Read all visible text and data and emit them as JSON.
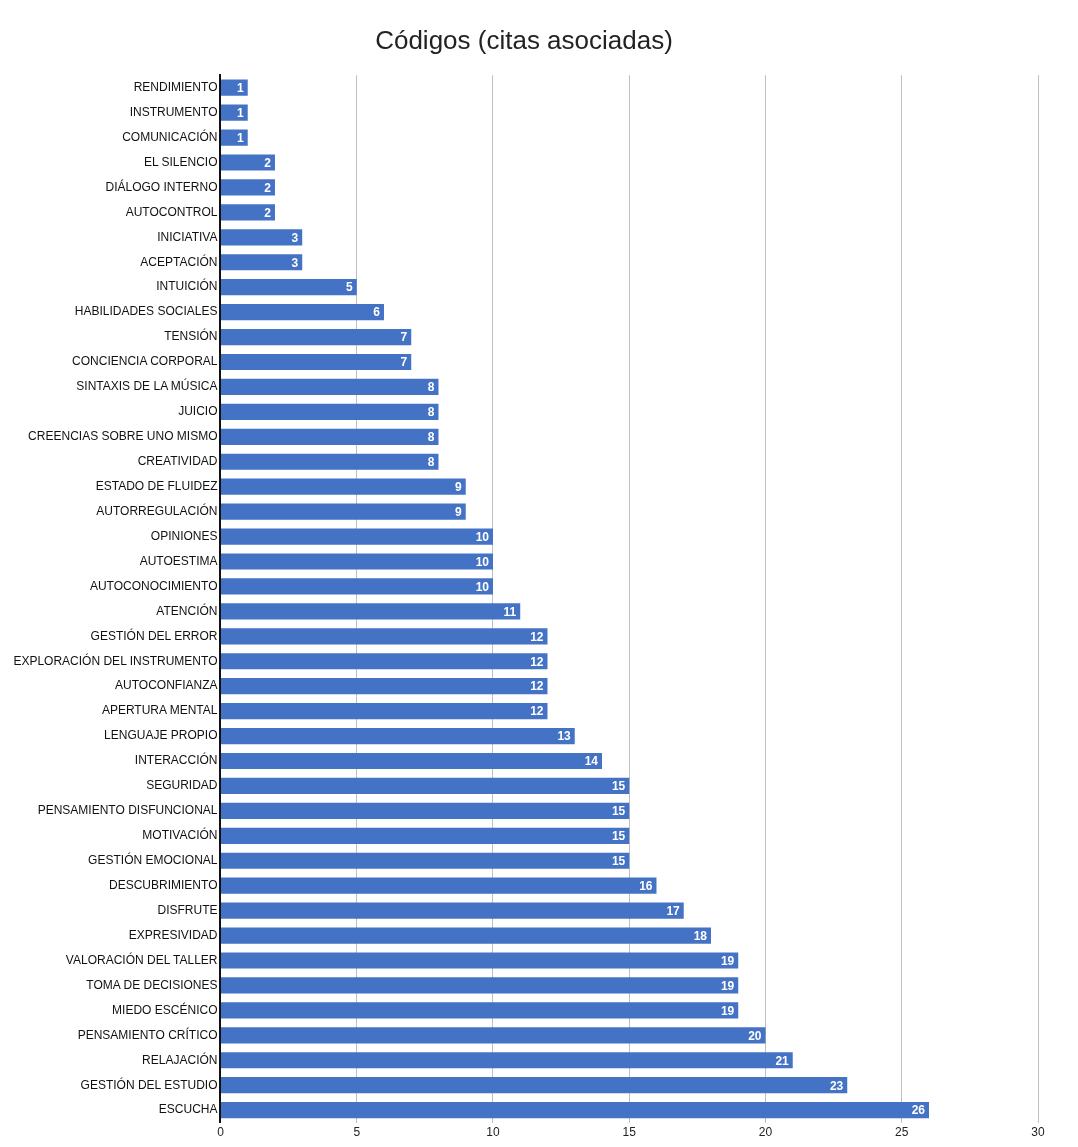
{
  "chart_data": {
    "type": "bar",
    "orientation": "horizontal",
    "title": "Códigos (citas asociadas)",
    "categories": [
      "RENDIMIENTO",
      "INSTRUMENTO",
      "COMUNICACIÓN",
      "EL SILENCIO",
      "DIÁLOGO INTERNO",
      "AUTOCONTROL",
      "INICIATIVA",
      "ACEPTACIÓN",
      "INTUICIÓN",
      "HABILIDADES SOCIALES",
      "TENSIÓN",
      "CONCIENCIA CORPORAL",
      "SINTAXIS DE LA MÚSICA",
      "JUICIO",
      "CREENCIAS SOBRE UNO MISMO",
      "CREATIVIDAD",
      "ESTADO DE FLUIDEZ",
      "AUTORREGULACIÓN",
      "OPINIONES",
      "AUTOESTIMA",
      "AUTOCONOCIMIENTO",
      "ATENCIÓN",
      "GESTIÓN DEL ERROR",
      "EXPLORACIÓN DEL INSTRUMENTO",
      "AUTOCONFIANZA",
      "APERTURA MENTAL",
      "LENGUAJE PROPIO",
      "INTERACCIÓN",
      "SEGURIDAD",
      "PENSAMIENTO DISFUNCIONAL",
      "MOTIVACIÓN",
      "GESTIÓN EMOCIONAL",
      "DESCUBRIMIENTO",
      "DISFRUTE",
      "EXPRESIVIDAD",
      "VALORACIÓN DEL TALLER",
      "TOMA DE DECISIONES",
      "MIEDO ESCÉNICO",
      "PENSAMIENTO CRÍTICO",
      "RELAJACIÓN",
      "GESTIÓN DEL ESTUDIO",
      "ESCUCHA"
    ],
    "values": [
      1,
      1,
      1,
      2,
      2,
      2,
      3,
      3,
      5,
      6,
      7,
      7,
      8,
      8,
      8,
      8,
      9,
      9,
      10,
      10,
      10,
      11,
      12,
      12,
      12,
      12,
      13,
      14,
      15,
      15,
      15,
      15,
      16,
      17,
      18,
      19,
      19,
      19,
      20,
      21,
      23,
      26
    ],
    "color": "#4472c4",
    "xlim": [
      0,
      30
    ],
    "xticks": [
      0,
      5,
      10,
      15,
      20,
      25,
      30
    ],
    "grid": "x",
    "data_labels": true
  }
}
